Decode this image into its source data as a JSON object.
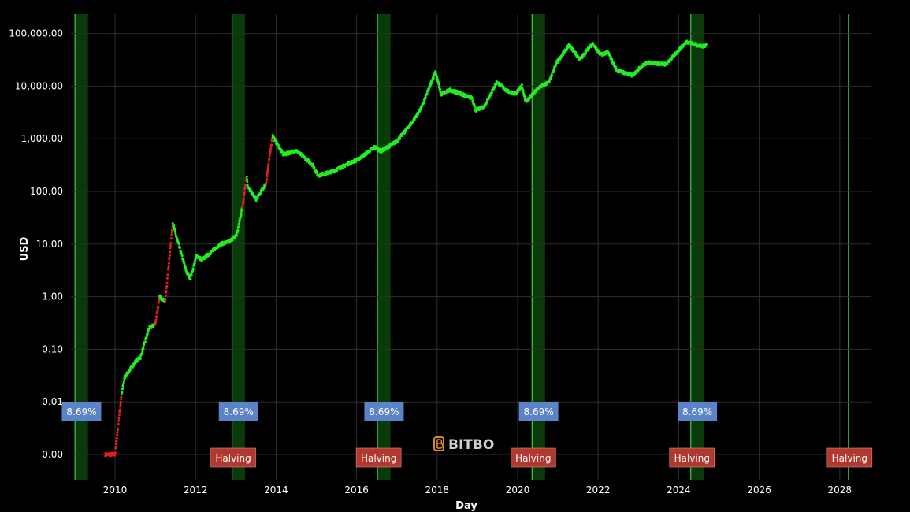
{
  "chart_data": {
    "type": "scatter",
    "title": "",
    "xlabel": "Day",
    "ylabel": "USD",
    "y_scale": "log",
    "ylim": [
      0.0006,
      200000
    ],
    "xlim": [
      "2008-11-15",
      "2028-11-01"
    ],
    "grid": true,
    "background": "#000000",
    "x_ticks": [
      "2010",
      "2012",
      "2014",
      "2016",
      "2018",
      "2020",
      "2022",
      "2024",
      "2026",
      "2028"
    ],
    "y_ticks": [
      {
        "value": 100000,
        "label": "100,000.00"
      },
      {
        "value": 10000,
        "label": "10,000.00"
      },
      {
        "value": 1000,
        "label": "1,000.00"
      },
      {
        "value": 100,
        "label": "100.00"
      },
      {
        "value": 10,
        "label": "10.00"
      },
      {
        "value": 1,
        "label": "1.00"
      },
      {
        "value": 0.1,
        "label": "0.10"
      },
      {
        "value": 0.01,
        "label": "0.01"
      },
      {
        "value": 0.001,
        "label": "0.00"
      }
    ],
    "colors": {
      "normal": "#22ee22",
      "rapid_rise": "#e02020",
      "band": "#0a3a0a",
      "band_line": "#3ecf3e",
      "pct_box": "#5b84c8",
      "halving_box": "#b0382e"
    },
    "bands": [
      {
        "start": "2009-01-03",
        "end": "2009-05-01",
        "pct_label": "8.69%",
        "halving_label": ""
      },
      {
        "start": "2012-11-28",
        "end": "2013-03-25",
        "pct_label": "8.69%",
        "halving_label": "Halving"
      },
      {
        "start": "2016-07-09",
        "end": "2016-11-05",
        "pct_label": "8.69%",
        "halving_label": "Halving"
      },
      {
        "start": "2020-05-11",
        "end": "2020-09-07",
        "pct_label": "8.69%",
        "halving_label": "Halving"
      },
      {
        "start": "2024-04-20",
        "end": "2024-08-17",
        "pct_label": "8.69%",
        "halving_label": "Halving"
      },
      {
        "start": "2028-03-20",
        "end": "2028-03-20",
        "pct_label": "",
        "halving_label": "Halving"
      }
    ],
    "price_series": [
      [
        "2009-10-05",
        0.001
      ],
      [
        "2010-01-01",
        0.001
      ],
      [
        "2010-02-01",
        0.004
      ],
      [
        "2010-03-01",
        0.014
      ],
      [
        "2010-04-01",
        0.03
      ],
      [
        "2010-07-10",
        0.06
      ],
      [
        "2010-08-20",
        0.07
      ],
      [
        "2010-11-05",
        0.25
      ],
      [
        "2011-01-01",
        0.3
      ],
      [
        "2011-02-10",
        1.0
      ],
      [
        "2011-04-01",
        0.8
      ],
      [
        "2011-06-08",
        25
      ],
      [
        "2011-07-10",
        14
      ],
      [
        "2011-10-10",
        3
      ],
      [
        "2011-11-15",
        2.2
      ],
      [
        "2012-01-10",
        6
      ],
      [
        "2012-03-01",
        5
      ],
      [
        "2012-08-15",
        10
      ],
      [
        "2012-11-01",
        11
      ],
      [
        "2013-01-10",
        15
      ],
      [
        "2013-03-01",
        50
      ],
      [
        "2013-04-10",
        200
      ],
      [
        "2013-04-20",
        120
      ],
      [
        "2013-07-05",
        70
      ],
      [
        "2013-10-01",
        140
      ],
      [
        "2013-11-30",
        1150
      ],
      [
        "2014-01-10",
        800
      ],
      [
        "2014-03-10",
        500
      ],
      [
        "2014-07-01",
        600
      ],
      [
        "2014-12-01",
        320
      ],
      [
        "2015-01-15",
        200
      ],
      [
        "2015-06-01",
        240
      ],
      [
        "2015-11-01",
        350
      ],
      [
        "2016-01-10",
        400
      ],
      [
        "2016-06-15",
        700
      ],
      [
        "2016-08-10",
        580
      ],
      [
        "2017-01-01",
        900
      ],
      [
        "2017-05-15",
        2000
      ],
      [
        "2017-08-15",
        4000
      ],
      [
        "2017-12-17",
        19000
      ],
      [
        "2018-02-06",
        7000
      ],
      [
        "2018-05-01",
        8500
      ],
      [
        "2018-11-10",
        6000
      ],
      [
        "2018-12-15",
        3500
      ],
      [
        "2019-03-01",
        4000
      ],
      [
        "2019-06-26",
        12000
      ],
      [
        "2019-10-01",
        8000
      ],
      [
        "2019-12-15",
        7200
      ],
      [
        "2020-02-10",
        10000
      ],
      [
        "2020-03-15",
        5000
      ],
      [
        "2020-07-15",
        9500
      ],
      [
        "2020-10-15",
        12000
      ],
      [
        "2020-12-20",
        28000
      ],
      [
        "2021-04-14",
        60000
      ],
      [
        "2021-07-20",
        32000
      ],
      [
        "2021-11-10",
        65000
      ],
      [
        "2022-01-20",
        40000
      ],
      [
        "2022-04-01",
        44000
      ],
      [
        "2022-06-18",
        20000
      ],
      [
        "2022-11-10",
        16000
      ],
      [
        "2023-01-20",
        23000
      ],
      [
        "2023-03-20",
        28000
      ],
      [
        "2023-09-10",
        26000
      ],
      [
        "2023-12-10",
        43000
      ],
      [
        "2024-03-14",
        70000
      ],
      [
        "2024-08-05",
        56000
      ],
      [
        "2024-09-10",
        62000
      ]
    ]
  },
  "watermark": {
    "text": "BITBO"
  }
}
